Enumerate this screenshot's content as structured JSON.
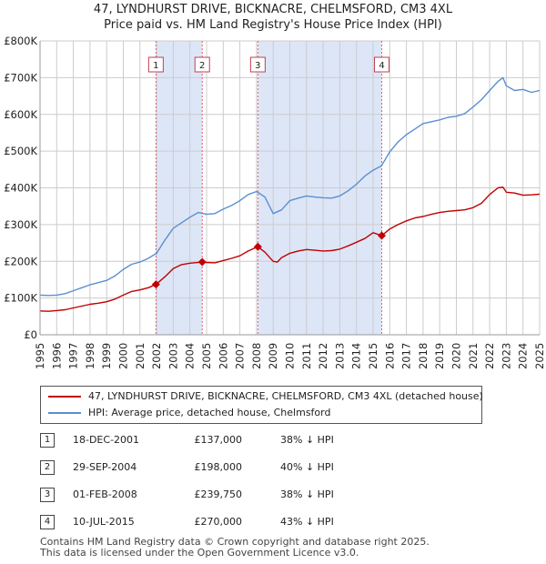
{
  "title_line1": "47, LYNDHURST DRIVE, BICKNACRE, CHELMSFORD, CM3 4XL",
  "title_line2": "Price paid vs. HM Land Registry's House Price Index (HPI)",
  "colors": {
    "price_paid": "#c00000",
    "hpi": "#5b8fd0",
    "shade": "#dde6f7",
    "marker_line": "#e06070"
  },
  "legend": {
    "price_paid_label": "47, LYNDHURST DRIVE, BICKNACRE, CHELMSFORD, CM3 4XL (detached house)",
    "hpi_label": "HPI: Average price, detached house, Chelmsford"
  },
  "transactions": [
    {
      "num": "1",
      "date": "18-DEC-2001",
      "price": "£137,000",
      "hpi": "38% ↓ HPI"
    },
    {
      "num": "2",
      "date": "29-SEP-2004",
      "price": "£198,000",
      "hpi": "40% ↓ HPI"
    },
    {
      "num": "3",
      "date": "01-FEB-2008",
      "price": "£239,750",
      "hpi": "38% ↓ HPI"
    },
    {
      "num": "4",
      "date": "10-JUL-2015",
      "price": "£270,000",
      "hpi": "43% ↓ HPI"
    }
  ],
  "footer_line1": "Contains HM Land Registry data © Crown copyright and database right 2025.",
  "footer_line2": "This data is licensed under the Open Government Licence v3.0.",
  "chart_data": {
    "type": "line",
    "x_range": [
      1995,
      2025
    ],
    "y_range": [
      0,
      800000
    ],
    "y_ticks": [
      {
        "value": 0,
        "label": "£0"
      },
      {
        "value": 100000,
        "label": "£100K"
      },
      {
        "value": 200000,
        "label": "£200K"
      },
      {
        "value": 300000,
        "label": "£300K"
      },
      {
        "value": 400000,
        "label": "£400K"
      },
      {
        "value": 500000,
        "label": "£500K"
      },
      {
        "value": 600000,
        "label": "£600K"
      },
      {
        "value": 700000,
        "label": "£700K"
      },
      {
        "value": 800000,
        "label": "£800K"
      }
    ],
    "x_ticks": [
      "1995",
      "1996",
      "1997",
      "1998",
      "1999",
      "2000",
      "2001",
      "2002",
      "2003",
      "2004",
      "2005",
      "2006",
      "2007",
      "2008",
      "2009",
      "2010",
      "2011",
      "2012",
      "2013",
      "2014",
      "2015",
      "2016",
      "2017",
      "2018",
      "2019",
      "2020",
      "2021",
      "2022",
      "2023",
      "2024",
      "2025"
    ],
    "grid": true,
    "shaded_periods": [
      [
        2001.96,
        2004.74
      ],
      [
        2008.08,
        2015.52
      ]
    ],
    "sale_markers": [
      {
        "label": "1",
        "x": 2001.96,
        "y": 137000
      },
      {
        "label": "2",
        "x": 2004.74,
        "y": 198000
      },
      {
        "label": "3",
        "x": 2008.08,
        "y": 239750
      },
      {
        "label": "4",
        "x": 2015.52,
        "y": 270000
      }
    ],
    "series": [
      {
        "name": "47, LYNDHURST DRIVE, BICKNACRE, CHELMSFORD, CM3 4XL (detached house)",
        "x": [
          1995,
          1995.5,
          1996,
          1996.5,
          1997,
          1997.5,
          1998,
          1998.5,
          1999,
          1999.5,
          2000,
          2000.5,
          2001,
          2001.5,
          2001.96,
          2002.5,
          2003,
          2003.5,
          2004,
          2004.74,
          2005,
          2005.5,
          2006,
          2006.5,
          2007,
          2007.5,
          2008.08,
          2008.5,
          2009,
          2009.25,
          2009.5,
          2010,
          2010.5,
          2011,
          2011.5,
          2012,
          2012.5,
          2013,
          2013.5,
          2014,
          2014.5,
          2015,
          2015.52,
          2016,
          2016.5,
          2017,
          2017.5,
          2018,
          2018.5,
          2019,
          2019.5,
          2020,
          2020.5,
          2021,
          2021.5,
          2022,
          2022.5,
          2022.8,
          2023,
          2023.5,
          2024,
          2024.5,
          2025
        ],
        "values": [
          65000,
          64000,
          66000,
          68000,
          73000,
          78000,
          83000,
          86000,
          90000,
          97000,
          108000,
          118000,
          122000,
          128000,
          137000,
          158000,
          180000,
          191000,
          195000,
          198000,
          197000,
          196000,
          202000,
          208000,
          215000,
          228000,
          239750,
          225000,
          200000,
          198000,
          210000,
          222000,
          228000,
          232000,
          230000,
          228000,
          229000,
          233000,
          242000,
          252000,
          262000,
          278000,
          270000,
          288000,
          300000,
          310000,
          318000,
          322000,
          328000,
          333000,
          336000,
          338000,
          340000,
          346000,
          358000,
          382000,
          400000,
          402000,
          388000,
          386000,
          380000,
          381000,
          383000
        ]
      },
      {
        "name": "HPI: Average price, detached house, Chelmsford",
        "x": [
          1995,
          1995.5,
          1996,
          1996.5,
          1997,
          1997.5,
          1998,
          1998.5,
          1999,
          1999.5,
          2000,
          2000.5,
          2001,
          2001.5,
          2002,
          2002.5,
          2003,
          2003.5,
          2004,
          2004.5,
          2005,
          2005.5,
          2006,
          2006.5,
          2007,
          2007.5,
          2008,
          2008.5,
          2009,
          2009.5,
          2010,
          2010.5,
          2011,
          2011.5,
          2012,
          2012.5,
          2013,
          2013.5,
          2014,
          2014.5,
          2015,
          2015.5,
          2016,
          2016.5,
          2017,
          2017.5,
          2018,
          2018.5,
          2019,
          2019.5,
          2020,
          2020.5,
          2021,
          2021.5,
          2022,
          2022.5,
          2022.8,
          2023,
          2023.5,
          2024,
          2024.5,
          2025
        ],
        "values": [
          108000,
          107000,
          108000,
          112000,
          120000,
          128000,
          136000,
          142000,
          148000,
          160000,
          178000,
          192000,
          198000,
          208000,
          222000,
          258000,
          290000,
          305000,
          320000,
          333000,
          328000,
          330000,
          342000,
          352000,
          365000,
          382000,
          390000,
          375000,
          330000,
          340000,
          365000,
          372000,
          378000,
          375000,
          373000,
          372000,
          378000,
          392000,
          410000,
          432000,
          448000,
          460000,
          498000,
          525000,
          545000,
          560000,
          575000,
          580000,
          585000,
          592000,
          595000,
          602000,
          620000,
          640000,
          665000,
          690000,
          700000,
          678000,
          665000,
          668000,
          660000,
          665000
        ]
      }
    ]
  }
}
